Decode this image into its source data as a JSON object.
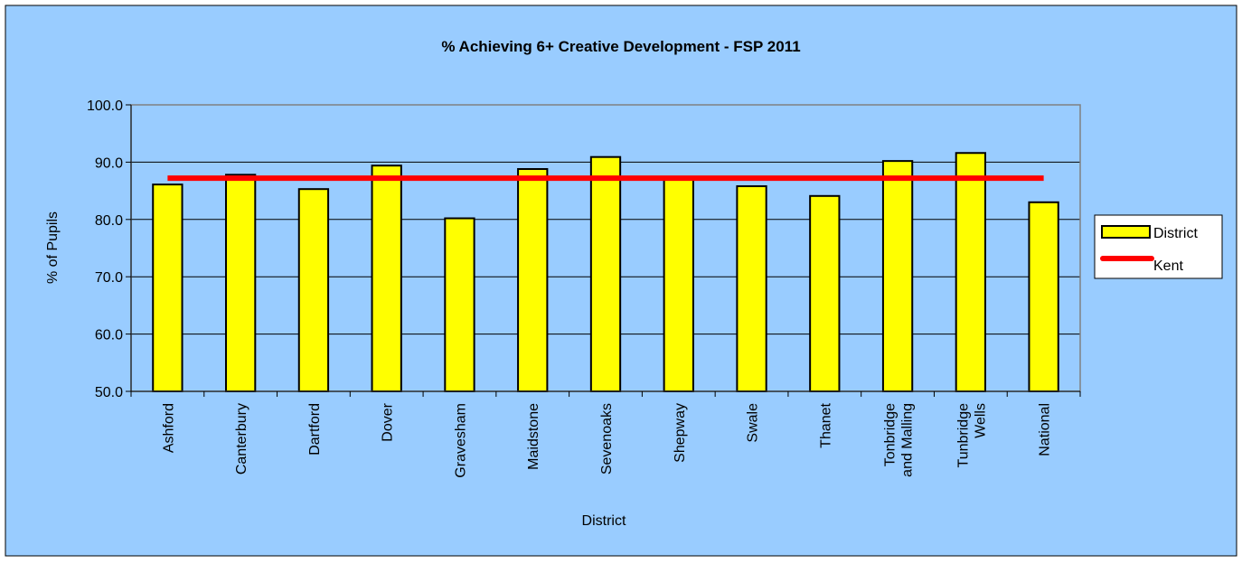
{
  "chart_data": {
    "type": "bar",
    "title": "% Achieving 6+ Creative Development - FSP 2011",
    "xlabel": "District",
    "ylabel": "% of Pupils",
    "ylim": [
      50,
      100
    ],
    "yticks": [
      "50.0",
      "60.0",
      "70.0",
      "80.0",
      "90.0",
      "100.0"
    ],
    "categories": [
      [
        "Ashford"
      ],
      [
        "Canterbury"
      ],
      [
        "Dartford"
      ],
      [
        "Dover"
      ],
      [
        "Gravesham"
      ],
      [
        "Maidstone"
      ],
      [
        "Sevenoaks"
      ],
      [
        "Shepway"
      ],
      [
        "Swale"
      ],
      [
        "Thanet"
      ],
      [
        "Tonbridge",
        "and Malling"
      ],
      [
        "Tunbridge",
        "Wells"
      ],
      [
        "National"
      ]
    ],
    "series": [
      {
        "name": "District",
        "type": "bar",
        "color": "#ffff00",
        "values": [
          86.1,
          87.8,
          85.3,
          89.4,
          80.2,
          88.8,
          90.9,
          87.0,
          85.8,
          84.1,
          90.2,
          91.6,
          83.0
        ]
      },
      {
        "name": "Kent",
        "type": "line",
        "color": "#ff0000",
        "value": 87.2
      }
    ],
    "grid": true,
    "legend": "right",
    "colors": {
      "chart_area": "#99ccff",
      "plot_area": "#99ccff",
      "bar_fill": "#ffff00",
      "kent_line": "#ff0000",
      "gridline": "#000000"
    }
  }
}
